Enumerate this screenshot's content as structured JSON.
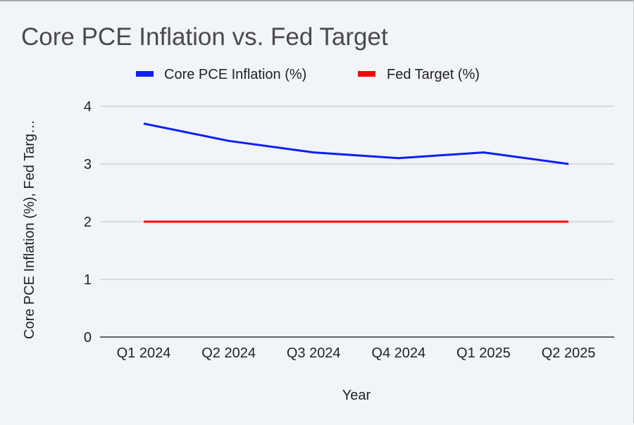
{
  "chart_data": {
    "type": "line",
    "title": "Core PCE Inflation vs. Fed Target",
    "xlabel": "Year",
    "ylabel": "Core PCE Inflation (%), Fed Targ…",
    "categories": [
      "Q1 2024",
      "Q2 2024",
      "Q3 2024",
      "Q4 2024",
      "Q1 2025",
      "Q2 2025"
    ],
    "series": [
      {
        "name": "Core PCE Inflation (%)",
        "color": "#0f1ff0",
        "values": [
          3.7,
          3.4,
          3.2,
          3.1,
          3.2,
          3.0
        ]
      },
      {
        "name": "Fed Target (%)",
        "color": "#ff0000",
        "values": [
          2,
          2,
          2,
          2,
          2,
          2
        ]
      }
    ],
    "ylim": [
      0,
      4
    ],
    "yticks": [
      0,
      1,
      2,
      3,
      4
    ],
    "grid": true,
    "legend_position": "top"
  }
}
